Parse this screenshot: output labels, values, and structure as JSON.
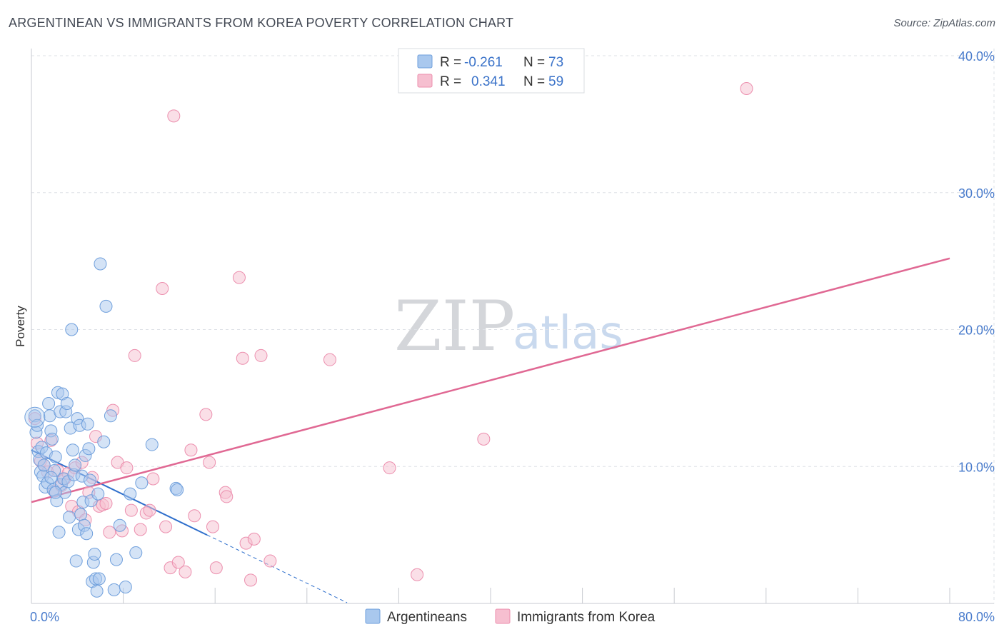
{
  "title": "ARGENTINEAN VS IMMIGRANTS FROM KOREA POVERTY CORRELATION CHART",
  "source": "Source: ZipAtlas.com",
  "watermark": {
    "zip": "ZIP",
    "atlas": "atlas"
  },
  "colors": {
    "blue_fill": "#a9c8ee",
    "blue_stroke": "#6f9fdc",
    "blue_line": "#2f6fcc",
    "pink_fill": "#f6bfd0",
    "pink_stroke": "#ec8fae",
    "pink_line": "#e06893",
    "grid": "#dde0e5",
    "axis_text": "#4a7ccc"
  },
  "legend": {
    "rows": [
      {
        "r_label": "R =",
        "r_value": "-0.261",
        "n_label": "N =",
        "n_value": "73"
      },
      {
        "r_label": "R =",
        "r_value": "0.341",
        "n_label": "N =",
        "n_value": "59"
      }
    ]
  },
  "chart_data": {
    "type": "scatter",
    "title": "ARGENTINEAN VS IMMIGRANTS FROM KOREA POVERTY CORRELATION CHART",
    "xlabel": "",
    "ylabel": "Poverty",
    "xlim": [
      0,
      80
    ],
    "ylim": [
      0,
      40
    ],
    "x_tick_labels": [
      "0.0%",
      "80.0%"
    ],
    "y_ticks": [
      10,
      20,
      30,
      40
    ],
    "y_tick_labels": [
      "10.0%",
      "20.0%",
      "30.0%",
      "40.0%"
    ],
    "grid": true,
    "legend_position": "bottom",
    "series": [
      {
        "name": "Argentineans",
        "r": -0.261,
        "n": 73,
        "trend": {
          "x0": 0,
          "y0": 11.2,
          "x1": 15.3,
          "y1": 5.0,
          "dashed_to_x": 27.5
        },
        "points": [
          [
            0.3,
            13.7
          ],
          [
            0.4,
            12.5
          ],
          [
            0.5,
            13.0
          ],
          [
            0.6,
            11.1
          ],
          [
            0.7,
            10.5
          ],
          [
            0.8,
            9.6
          ],
          [
            0.9,
            11.4
          ],
          [
            1.0,
            9.3
          ],
          [
            1.1,
            10.1
          ],
          [
            1.2,
            8.5
          ],
          [
            1.3,
            11.0
          ],
          [
            1.4,
            8.8
          ],
          [
            1.5,
            14.6
          ],
          [
            1.6,
            13.7
          ],
          [
            1.7,
            12.6
          ],
          [
            1.8,
            12.0
          ],
          [
            1.9,
            8.3
          ],
          [
            2.0,
            9.7
          ],
          [
            2.1,
            10.7
          ],
          [
            2.2,
            7.5
          ],
          [
            2.3,
            15.4
          ],
          [
            2.4,
            5.2
          ],
          [
            2.5,
            14.0
          ],
          [
            2.6,
            8.7
          ],
          [
            2.7,
            15.3
          ],
          [
            2.8,
            9.1
          ],
          [
            2.9,
            8.1
          ],
          [
            3.0,
            14.0
          ],
          [
            3.1,
            14.6
          ],
          [
            3.2,
            8.9
          ],
          [
            3.3,
            6.3
          ],
          [
            3.4,
            12.8
          ],
          [
            3.5,
            20.0
          ],
          [
            3.6,
            11.2
          ],
          [
            3.7,
            9.4
          ],
          [
            3.8,
            10.1
          ],
          [
            3.9,
            3.1
          ],
          [
            4.0,
            13.5
          ],
          [
            4.1,
            5.4
          ],
          [
            4.2,
            13.0
          ],
          [
            4.3,
            6.5
          ],
          [
            4.4,
            9.3
          ],
          [
            4.5,
            7.4
          ],
          [
            4.6,
            5.7
          ],
          [
            4.7,
            10.8
          ],
          [
            4.8,
            5.1
          ],
          [
            4.9,
            13.1
          ],
          [
            5.0,
            11.3
          ],
          [
            5.1,
            9.0
          ],
          [
            5.2,
            7.5
          ],
          [
            5.3,
            1.6
          ],
          [
            5.4,
            3.0
          ],
          [
            5.5,
            3.6
          ],
          [
            5.6,
            1.8
          ],
          [
            5.7,
            0.9
          ],
          [
            5.8,
            8.0
          ],
          [
            5.9,
            1.8
          ],
          [
            6.0,
            24.8
          ],
          [
            6.3,
            11.8
          ],
          [
            6.5,
            21.7
          ],
          [
            6.9,
            13.7
          ],
          [
            7.2,
            1.0
          ],
          [
            7.4,
            3.2
          ],
          [
            7.7,
            5.7
          ],
          [
            8.2,
            1.2
          ],
          [
            8.6,
            8.0
          ],
          [
            9.1,
            3.7
          ],
          [
            9.6,
            8.8
          ],
          [
            10.5,
            11.6
          ],
          [
            12.6,
            8.4
          ],
          [
            12.7,
            8.3
          ],
          [
            1.7,
            9.2
          ],
          [
            2.1,
            8.1
          ]
        ]
      },
      {
        "name": "Immigrants from Korea",
        "r": 0.341,
        "n": 59,
        "trend": {
          "x0": 0,
          "y0": 7.4,
          "x1": 80,
          "y1": 25.2
        },
        "points": [
          [
            0.3,
            13.5
          ],
          [
            0.5,
            11.7
          ],
          [
            0.8,
            10.4
          ],
          [
            1.1,
            10.1
          ],
          [
            1.4,
            9.6
          ],
          [
            1.7,
            11.9
          ],
          [
            2.0,
            8.2
          ],
          [
            2.3,
            9.7
          ],
          [
            2.6,
            8.6
          ],
          [
            2.9,
            9.1
          ],
          [
            3.2,
            9.5
          ],
          [
            3.5,
            7.1
          ],
          [
            3.8,
            9.9
          ],
          [
            4.1,
            6.7
          ],
          [
            4.4,
            10.3
          ],
          [
            4.7,
            6.1
          ],
          [
            5.0,
            8.1
          ],
          [
            5.3,
            9.2
          ],
          [
            5.6,
            12.2
          ],
          [
            5.9,
            7.1
          ],
          [
            6.2,
            7.2
          ],
          [
            6.5,
            7.3
          ],
          [
            6.8,
            5.2
          ],
          [
            7.1,
            14.1
          ],
          [
            7.5,
            10.3
          ],
          [
            7.9,
            5.3
          ],
          [
            8.3,
            9.9
          ],
          [
            8.7,
            6.8
          ],
          [
            9.0,
            18.1
          ],
          [
            9.5,
            5.4
          ],
          [
            10.0,
            6.6
          ],
          [
            10.3,
            6.8
          ],
          [
            10.6,
            9.1
          ],
          [
            11.4,
            23.0
          ],
          [
            11.7,
            5.6
          ],
          [
            12.1,
            2.6
          ],
          [
            12.4,
            35.6
          ],
          [
            12.8,
            3.0
          ],
          [
            13.4,
            2.3
          ],
          [
            13.9,
            11.2
          ],
          [
            14.2,
            6.4
          ],
          [
            15.2,
            13.8
          ],
          [
            15.5,
            10.3
          ],
          [
            15.8,
            5.6
          ],
          [
            16.1,
            2.6
          ],
          [
            16.9,
            8.1
          ],
          [
            17.0,
            7.8
          ],
          [
            18.1,
            23.8
          ],
          [
            18.4,
            17.9
          ],
          [
            18.7,
            4.4
          ],
          [
            19.1,
            1.7
          ],
          [
            19.4,
            4.7
          ],
          [
            20.0,
            18.1
          ],
          [
            20.8,
            3.1
          ],
          [
            26.0,
            17.8
          ],
          [
            31.2,
            9.9
          ],
          [
            33.6,
            2.1
          ],
          [
            39.4,
            12.0
          ],
          [
            62.3,
            37.6
          ]
        ]
      }
    ]
  }
}
